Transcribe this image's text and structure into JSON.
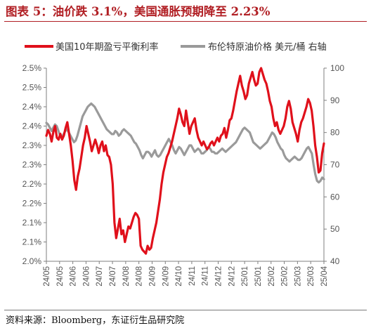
{
  "header": {
    "title": "图表 5：油价跌 3.1%，美国通胀预期降至 2.23%"
  },
  "footer": {
    "source": "资料来源：Bloomberg，东证衍生品研究院"
  },
  "colors": {
    "breakeven": "#e0101b",
    "oil": "#9a9a9a",
    "axis": "#7f7f7f",
    "title": "#b11f24"
  },
  "chart_data": {
    "type": "line",
    "title": "",
    "legend_position": "top",
    "grid": false,
    "y_left": {
      "label": "",
      "ylim": [
        2.0,
        2.5
      ],
      "tick_labels": [
        "2.5%",
        "2.5%",
        "2.4%",
        "2.4%",
        "2.3%",
        "2.3%",
        "2.2%",
        "2.2%",
        "2.1%",
        "2.1%",
        "2.0%"
      ]
    },
    "y_right": {
      "label": "",
      "ylim": [
        40,
        100
      ],
      "tick_labels": [
        "100",
        "90",
        "80",
        "70",
        "60",
        "50",
        "40"
      ]
    },
    "x_tick_labels": [
      "24/05",
      "24/05",
      "24/06",
      "24/06",
      "24/07",
      "24/07",
      "24/08",
      "24/08",
      "24/09",
      "24/09",
      "24/10",
      "24/11",
      "24/11",
      "24/12",
      "24/12",
      "25/01",
      "25/01",
      "25/02",
      "25/02",
      "25/03",
      "25/03",
      "25/04"
    ],
    "series": [
      {
        "name": "美国10年期盈亏平衡利率",
        "axis": "left",
        "values": [
          2.325,
          2.34,
          2.33,
          2.31,
          2.335,
          2.35,
          2.32,
          2.315,
          2.33,
          2.315,
          2.325,
          2.345,
          2.36,
          2.33,
          2.3,
          2.26,
          2.21,
          2.185,
          2.22,
          2.24,
          2.27,
          2.3,
          2.32,
          2.35,
          2.33,
          2.31,
          2.285,
          2.3,
          2.315,
          2.3,
          2.28,
          2.3,
          2.31,
          2.285,
          2.3,
          2.275,
          2.27,
          2.25,
          2.2,
          2.1,
          2.06,
          2.085,
          2.11,
          2.07,
          2.08,
          2.05,
          2.07,
          2.09,
          2.085,
          2.1,
          2.115,
          2.125,
          2.12,
          2.11,
          2.04,
          2.03,
          2.025,
          2.02,
          2.04,
          2.03,
          2.035,
          2.06,
          2.08,
          2.1,
          2.13,
          2.16,
          2.2,
          2.23,
          2.25,
          2.27,
          2.28,
          2.295,
          2.31,
          2.33,
          2.35,
          2.37,
          2.395,
          2.38,
          2.36,
          2.35,
          2.39,
          2.36,
          2.33,
          2.35,
          2.36,
          2.37,
          2.34,
          2.32,
          2.31,
          2.3,
          2.31,
          2.3,
          2.29,
          2.295,
          2.305,
          2.31,
          2.3,
          2.31,
          2.32,
          2.31,
          2.325,
          2.33,
          2.345,
          2.32,
          2.34,
          2.365,
          2.37,
          2.39,
          2.415,
          2.44,
          2.46,
          2.48,
          2.455,
          2.44,
          2.42,
          2.43,
          2.46,
          2.475,
          2.49,
          2.47,
          2.455,
          2.46,
          2.49,
          2.5,
          2.485,
          2.47,
          2.46,
          2.44,
          2.415,
          2.4,
          2.37,
          2.35,
          2.36,
          2.34,
          2.33,
          2.34,
          2.35,
          2.37,
          2.4,
          2.415,
          2.395,
          2.36,
          2.345,
          2.33,
          2.31,
          2.34,
          2.36,
          2.37,
          2.385,
          2.4,
          2.42,
          2.41,
          2.39,
          2.35,
          2.3,
          2.27,
          2.23,
          2.235,
          2.28,
          2.305
        ]
      },
      {
        "name": "布伦特原油价格 美元/桶 右轴",
        "axis": "right",
        "values": [
          83,
          82.5,
          81.5,
          80.5,
          81.5,
          82.5,
          82,
          80.5,
          79,
          78.5,
          79.5,
          80.5,
          81,
          80,
          79,
          78,
          77,
          77.5,
          79,
          81,
          83,
          85,
          86,
          87,
          88,
          88.5,
          89,
          88.5,
          88,
          87,
          86,
          85,
          84,
          83,
          82,
          81,
          80.5,
          80,
          79.5,
          79.5,
          80.5,
          80,
          79,
          79.5,
          80.5,
          81,
          80.5,
          80,
          79.5,
          79,
          78,
          77,
          76.5,
          75.5,
          74.5,
          73,
          72,
          73,
          74,
          74,
          73.5,
          72.5,
          73.5,
          74.5,
          73,
          72.5,
          73,
          74,
          75,
          76,
          77,
          78,
          77,
          76,
          74.5,
          73.5,
          74.5,
          75.5,
          75,
          74,
          73,
          74,
          75,
          76,
          76,
          75,
          74,
          74.5,
          75,
          74.5,
          73.5,
          73.5,
          74,
          74.5,
          75.5,
          75,
          74,
          74,
          73.5,
          73.5,
          74,
          74.5,
          75,
          74.5,
          74,
          74.5,
          75,
          75.5,
          76,
          76.5,
          77,
          78,
          79,
          80,
          81,
          81.5,
          81,
          80.5,
          80,
          78.5,
          77,
          76.5,
          76,
          75.5,
          75,
          75.5,
          76,
          76.5,
          77,
          78,
          79,
          80,
          79.5,
          78.5,
          77,
          76,
          75,
          74.5,
          73,
          72,
          71.5,
          71,
          71.5,
          72,
          72.5,
          72,
          71.5,
          71.5,
          72,
          73,
          74,
          75,
          75.5,
          74.5,
          73.5,
          70,
          67,
          65,
          64.5,
          65,
          66,
          65.5
        ]
      }
    ]
  }
}
